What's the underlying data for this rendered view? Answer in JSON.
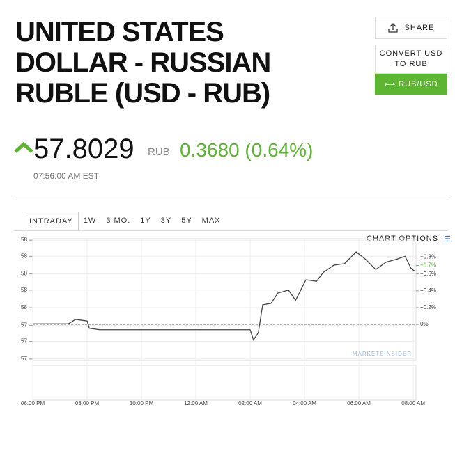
{
  "header": {
    "title": "UNITED STATES DOLLAR - RUSSIAN RUBLE (USD - RUB)",
    "price": "57.8029",
    "currency": "RUB",
    "change": "0.3680 (0.64%)",
    "time": "07:56:00 AM EST"
  },
  "buttons": {
    "share": "SHARE",
    "convert": "CONVERT USD TO RUB",
    "pair": "RUB/USD"
  },
  "tabs": [
    "INTRADAY",
    "1W",
    "3 MO.",
    "1Y",
    "3Y",
    "5Y",
    "MAX"
  ],
  "chart_options": "CHART OPTIONS",
  "chart_data": {
    "type": "line",
    "watermark": "MARKETSINSIDER",
    "x": [
      0,
      0.54,
      1.31,
      1.57,
      2.0,
      2.08,
      2.47,
      3.88,
      5.94,
      8.0,
      8.12,
      8.3,
      8.46,
      8.77,
      9.02,
      9.41,
      9.67,
      10.05,
      10.44,
      10.69,
      11.08,
      11.47,
      11.9,
      12.24,
      12.62,
      13.0,
      13.39,
      13.7,
      13.91,
      14.04
    ],
    "series": [
      {
        "name": "USD - RUB",
        "color": "#444444",
        "values": [
          57.44,
          57.44,
          57.44,
          57.47,
          57.46,
          57.41,
          57.4,
          57.4,
          57.4,
          57.4,
          57.33,
          57.38,
          57.57,
          57.58,
          57.65,
          57.67,
          57.6,
          57.74,
          57.73,
          57.79,
          57.84,
          57.85,
          57.93,
          57.88,
          57.81,
          57.86,
          57.88,
          57.9,
          57.82,
          57.8
        ]
      }
    ],
    "xlim": [
      0,
      14.1
    ],
    "xticks": [
      {
        "value": 0,
        "label": "06:00 PM"
      },
      {
        "value": 2,
        "label": "08:00 PM"
      },
      {
        "value": 4,
        "label": "10:00 PM"
      },
      {
        "value": 6,
        "label": "12:00 AM"
      },
      {
        "value": 8,
        "label": "02:00 AM"
      },
      {
        "value": 10,
        "label": "04:00 AM"
      },
      {
        "value": 12,
        "label": "06:00 AM"
      },
      {
        "value": 14,
        "label": "08:00 AM"
      }
    ],
    "ylim": [
      57.19,
      58.02
    ],
    "yticks": [
      {
        "value": 57.2,
        "label": "57"
      },
      {
        "value": 57.32,
        "label": "57"
      },
      {
        "value": 57.43,
        "label": "57"
      },
      {
        "value": 57.55,
        "label": "58"
      },
      {
        "value": 57.67,
        "label": "58"
      },
      {
        "value": 57.78,
        "label": "58"
      },
      {
        "value": 57.9,
        "label": "58"
      },
      {
        "value": 58.01,
        "label": "58"
      }
    ],
    "y2lim": [
      -0.43,
      1.02
    ],
    "y2ticks": [
      {
        "value": 0,
        "label": "0%"
      },
      {
        "value": 0.2,
        "label": "+0.2%"
      },
      {
        "value": 0.4,
        "label": "+0.4%"
      },
      {
        "value": 0.6,
        "label": "+0.6%"
      },
      {
        "value": 0.8,
        "label": "+0.8%"
      }
    ],
    "current": {
      "value": 0.7,
      "label": "+0.7%",
      "color": "#5db533"
    },
    "grid": true
  }
}
